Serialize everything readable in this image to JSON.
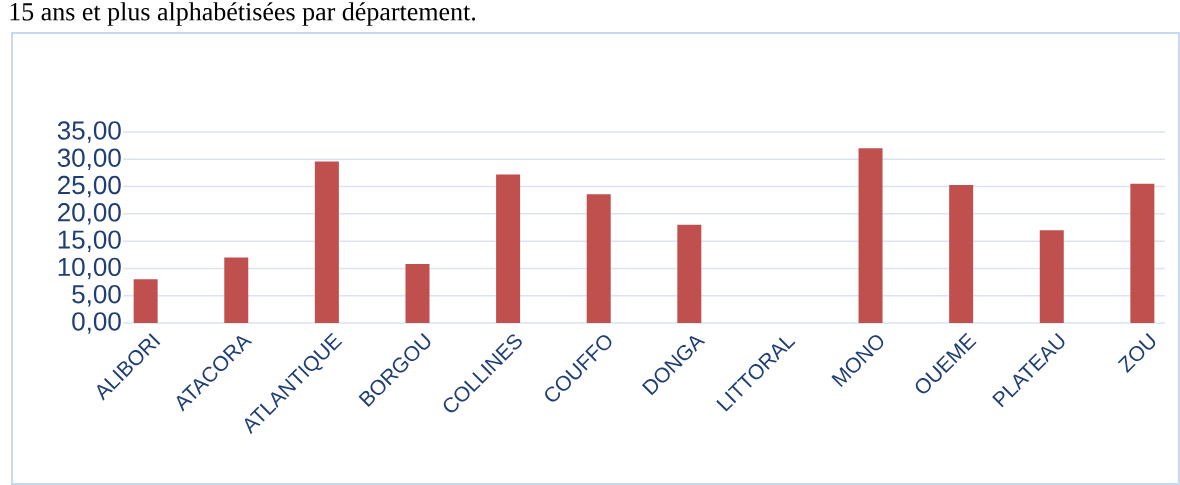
{
  "chart_data": {
    "type": "bar",
    "annotations": [
      "15 ans et plus alphabétisées par département."
    ],
    "categories": [
      "ALIBORI",
      "ATACORA",
      "ATLANTIQUE",
      "BORGOU",
      "COLLINES",
      "COUFFO",
      "DONGA",
      "LITTORAL",
      "MONO",
      "OUEME",
      "PLATEAU",
      "ZOU"
    ],
    "values": [
      8.0,
      12.0,
      29.6,
      10.8,
      27.2,
      23.6,
      18.0,
      null,
      32.0,
      25.3,
      17.0,
      25.5
    ],
    "color": "#c0504d",
    "ylim": [
      0,
      35
    ],
    "yticks": [
      {
        "value": 0,
        "label": "0,00"
      },
      {
        "value": 5,
        "label": "5,00"
      },
      {
        "value": 10,
        "label": "10,00"
      },
      {
        "value": 15,
        "label": "15,00"
      },
      {
        "value": 20,
        "label": "20,00"
      },
      {
        "value": 25,
        "label": "25,00"
      },
      {
        "value": 30,
        "label": "30,00"
      },
      {
        "value": 35,
        "label": "35,00"
      }
    ],
    "grid": "y"
  }
}
